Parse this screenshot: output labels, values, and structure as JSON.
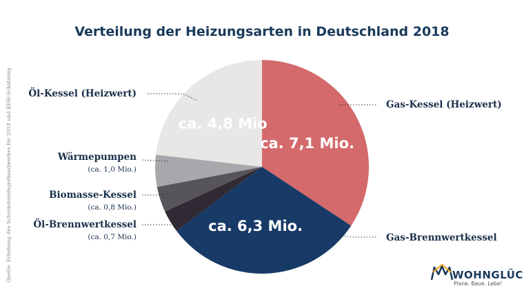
{
  "chart_data": {
    "type": "pie",
    "title": "Verteilung der Heizungsarten in Deutschland 2018",
    "slices": [
      {
        "name": "Gas-Kessel (Heizwert)",
        "value": 7.1,
        "value_label": "ca. 7,1 Mio.",
        "color": "#d46a6c",
        "text_color": "#ffffff"
      },
      {
        "name": "Gas-Brennwertkessel",
        "value": 6.3,
        "value_label": "ca. 6,3 Mio.",
        "color": "#173a66",
        "text_color": "#ffffff"
      },
      {
        "name": "Öl-Brennwertkessel",
        "value": 0.7,
        "value_label": "(ca. 0,7 Mio.)",
        "color": "#2f2a33",
        "text_color": "#ffffff"
      },
      {
        "name": "Biomasse-Kessel",
        "value": 0.8,
        "value_label": "(ca. 0,8 Mio.)",
        "color": "#58545b",
        "text_color": "#ffffff"
      },
      {
        "name": "Wärmepumpen",
        "value": 1.0,
        "value_label": "(ca. 1,0 Mio.)",
        "color": "#a9a7ac",
        "text_color": "#ffffff"
      },
      {
        "name": "Öl-Kessel (Heizwert)",
        "value": 4.8,
        "value_label": "ca. 4,8 Mio",
        "color": "#e8e7e5",
        "text_color": "#ffffff"
      }
    ]
  },
  "source": "Quelle: Erhebung des Schornsteinfegerhandwerkes für 2018 und BDH-Schätzung",
  "logo": {
    "name": "WOHNGLÜCK",
    "tagline": "Plane. Baue. Lebe!",
    "color": "#1a3a5c",
    "accent": "#f0a830"
  }
}
